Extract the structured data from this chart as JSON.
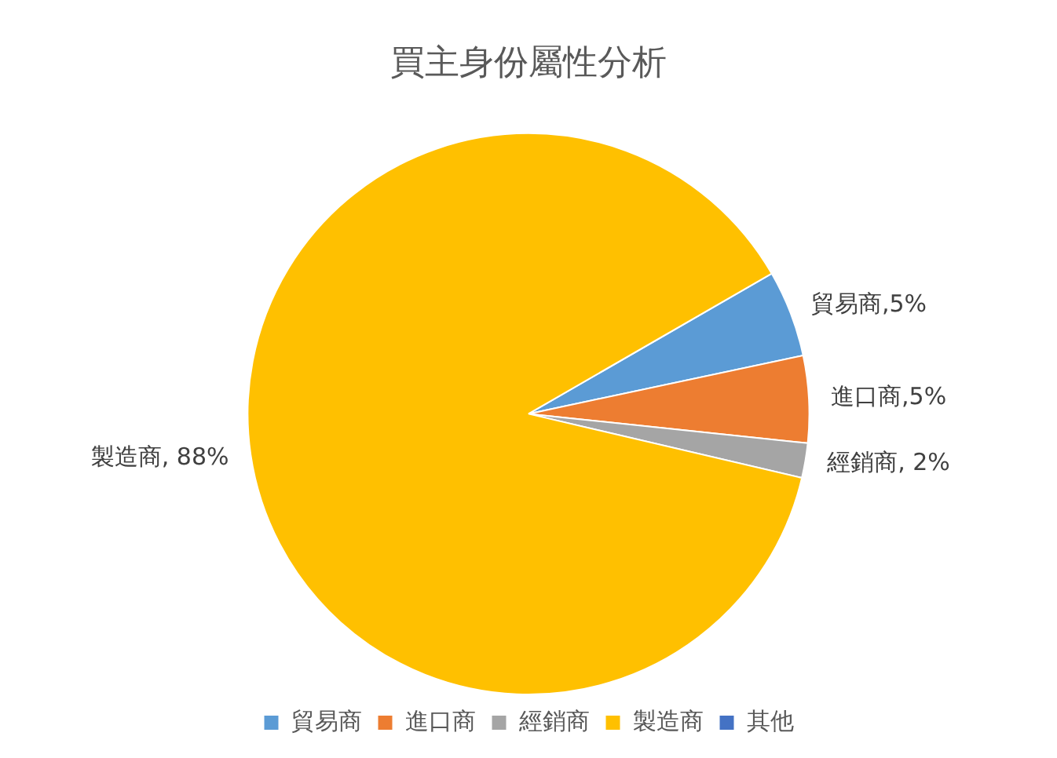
{
  "chart_data": {
    "type": "pie",
    "title": "買主身份屬性分析",
    "categories": [
      "貿易商",
      "進口商",
      "經銷商",
      "製造商",
      "其他"
    ],
    "values": [
      5,
      5,
      2,
      88,
      0
    ],
    "colors": [
      "#5b9bd5",
      "#ed7d31",
      "#a5a5a5",
      "#ffc000",
      "#4472c4"
    ],
    "value_labels": [
      "貿易商,5%",
      "進口商,5%",
      "經銷商, 2%",
      "製造商, 88%",
      null
    ],
    "legend": "bottom"
  }
}
